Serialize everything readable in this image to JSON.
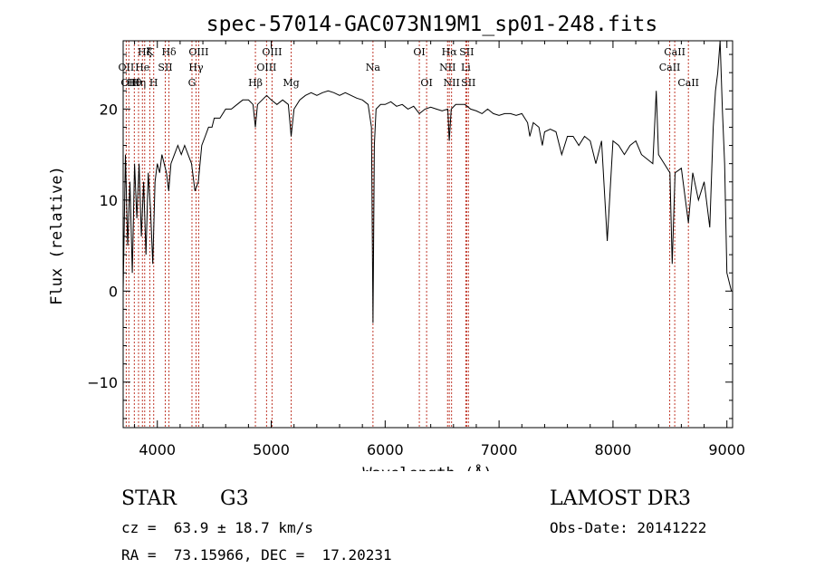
{
  "chart_data": {
    "type": "line",
    "title": "spec-57014-GAC073N19M1_sp01-248.fits",
    "xlabel": "Wavelength (Å)",
    "ylabel": "Flux (relative)",
    "xlim": [
      3700,
      9050
    ],
    "ylim": [
      -15,
      27.5
    ],
    "x_ticks": [
      4000,
      5000,
      6000,
      7000,
      8000,
      9000
    ],
    "y_ticks": [
      -10,
      0,
      10,
      20
    ],
    "x_tick_labels": [
      "4000",
      "5000",
      "6000",
      "7000",
      "8000",
      "9000"
    ],
    "y_tick_labels": [
      "−10",
      "0",
      "10",
      "20"
    ],
    "series": [
      {
        "name": "flux",
        "points": [
          [
            3700,
            0
          ],
          [
            3720,
            15
          ],
          [
            3740,
            5
          ],
          [
            3760,
            12
          ],
          [
            3780,
            2
          ],
          [
            3800,
            14
          ],
          [
            3820,
            8
          ],
          [
            3840,
            14
          ],
          [
            3860,
            6
          ],
          [
            3880,
            12
          ],
          [
            3900,
            4
          ],
          [
            3920,
            13
          ],
          [
            3940,
            9
          ],
          [
            3960,
            3
          ],
          [
            3980,
            12
          ],
          [
            4000,
            14
          ],
          [
            4020,
            13
          ],
          [
            4040,
            15
          ],
          [
            4060,
            14
          ],
          [
            4080,
            13
          ],
          [
            4100,
            11
          ],
          [
            4120,
            14
          ],
          [
            4150,
            15
          ],
          [
            4180,
            16
          ],
          [
            4210,
            15
          ],
          [
            4240,
            16
          ],
          [
            4270,
            15
          ],
          [
            4300,
            14
          ],
          [
            4330,
            11
          ],
          [
            4360,
            12
          ],
          [
            4390,
            16
          ],
          [
            4420,
            17
          ],
          [
            4450,
            18
          ],
          [
            4480,
            18
          ],
          [
            4500,
            19
          ],
          [
            4550,
            19
          ],
          [
            4600,
            20
          ],
          [
            4650,
            20
          ],
          [
            4700,
            20.5
          ],
          [
            4750,
            21
          ],
          [
            4800,
            21
          ],
          [
            4840,
            20.5
          ],
          [
            4861,
            18
          ],
          [
            4880,
            20.5
          ],
          [
            4920,
            21
          ],
          [
            4960,
            21.5
          ],
          [
            5000,
            21
          ],
          [
            5050,
            20.5
          ],
          [
            5100,
            21
          ],
          [
            5150,
            20.5
          ],
          [
            5175,
            17
          ],
          [
            5200,
            20
          ],
          [
            5250,
            21
          ],
          [
            5300,
            21.5
          ],
          [
            5350,
            21.8
          ],
          [
            5400,
            21.5
          ],
          [
            5450,
            21.8
          ],
          [
            5500,
            22
          ],
          [
            5550,
            21.8
          ],
          [
            5600,
            21.5
          ],
          [
            5650,
            21.8
          ],
          [
            5700,
            21.5
          ],
          [
            5750,
            21.2
          ],
          [
            5800,
            21
          ],
          [
            5850,
            20.5
          ],
          [
            5880,
            18
          ],
          [
            5893,
            -3.5
          ],
          [
            5905,
            16
          ],
          [
            5920,
            20
          ],
          [
            5960,
            20.5
          ],
          [
            6000,
            20.5
          ],
          [
            6050,
            20.8
          ],
          [
            6100,
            20.3
          ],
          [
            6150,
            20.5
          ],
          [
            6200,
            20
          ],
          [
            6250,
            20.3
          ],
          [
            6300,
            19.5
          ],
          [
            6350,
            20
          ],
          [
            6400,
            20.2
          ],
          [
            6450,
            20
          ],
          [
            6500,
            19.8
          ],
          [
            6550,
            20
          ],
          [
            6563,
            16.5
          ],
          [
            6580,
            20
          ],
          [
            6620,
            20.5
          ],
          [
            6650,
            20.5
          ],
          [
            6700,
            20.5
          ],
          [
            6750,
            20
          ],
          [
            6800,
            19.8
          ],
          [
            6850,
            19.5
          ],
          [
            6900,
            20
          ],
          [
            6950,
            19.5
          ],
          [
            7000,
            19.3
          ],
          [
            7050,
            19.5
          ],
          [
            7100,
            19.5
          ],
          [
            7150,
            19.3
          ],
          [
            7200,
            19.5
          ],
          [
            7250,
            18.5
          ],
          [
            7270,
            17
          ],
          [
            7300,
            18.5
          ],
          [
            7350,
            18
          ],
          [
            7380,
            16
          ],
          [
            7400,
            17.5
          ],
          [
            7450,
            17.8
          ],
          [
            7500,
            17.5
          ],
          [
            7550,
            15
          ],
          [
            7600,
            17
          ],
          [
            7650,
            17
          ],
          [
            7700,
            16
          ],
          [
            7750,
            17
          ],
          [
            7800,
            16.5
          ],
          [
            7850,
            14
          ],
          [
            7900,
            16.5
          ],
          [
            7950,
            5.5
          ],
          [
            8000,
            16.5
          ],
          [
            8050,
            16
          ],
          [
            8100,
            15
          ],
          [
            8150,
            16
          ],
          [
            8200,
            16.5
          ],
          [
            8250,
            15
          ],
          [
            8300,
            14.5
          ],
          [
            8350,
            14
          ],
          [
            8380,
            22
          ],
          [
            8400,
            15
          ],
          [
            8450,
            14
          ],
          [
            8500,
            13
          ],
          [
            8520,
            3
          ],
          [
            8545,
            13
          ],
          [
            8600,
            13.5
          ],
          [
            8662,
            7.5
          ],
          [
            8700,
            13
          ],
          [
            8750,
            10
          ],
          [
            8800,
            12
          ],
          [
            8850,
            7
          ],
          [
            8880,
            18
          ],
          [
            8900,
            22
          ],
          [
            8920,
            24
          ],
          [
            8940,
            27.5
          ],
          [
            8960,
            20
          ],
          [
            8980,
            14
          ],
          [
            9000,
            2
          ],
          [
            9040,
            0
          ]
        ]
      }
    ],
    "lines": [
      {
        "wave": 3727,
        "label": "OII",
        "row": 2
      },
      {
        "wave": 3750,
        "label": "OII",
        "row": 3
      },
      {
        "wave": 3798,
        "label": "Hθ",
        "row": 3
      },
      {
        "wave": 3835,
        "label": "Hη",
        "row": 4
      },
      {
        "wave": 3869,
        "label": "He",
        "row": 2
      },
      {
        "wave": 3889,
        "label": "Hζ",
        "row": 1
      },
      {
        "wave": 3934,
        "label": "K",
        "row": 1
      },
      {
        "wave": 3968,
        "label": "H",
        "row": 3
      },
      {
        "wave": 4070,
        "label": "SII",
        "row": 2
      },
      {
        "wave": 4102,
        "label": "Hδ",
        "row": 1
      },
      {
        "wave": 4304,
        "label": "G",
        "row": 3
      },
      {
        "wave": 4340,
        "label": "Hγ",
        "row": 2
      },
      {
        "wave": 4363,
        "label": "OIII",
        "row": 1
      },
      {
        "wave": 4861,
        "label": "Hβ",
        "row": 3
      },
      {
        "wave": 4959,
        "label": "OIII",
        "row": 2
      },
      {
        "wave": 5007,
        "label": "OIII",
        "row": 1
      },
      {
        "wave": 5175,
        "label": "Mg",
        "row": 3
      },
      {
        "wave": 5893,
        "label": "Na",
        "row": 2
      },
      {
        "wave": 6300,
        "label": "OI",
        "row": 1
      },
      {
        "wave": 6364,
        "label": "OI",
        "row": 3
      },
      {
        "wave": 6548,
        "label": "NII",
        "row": 2
      },
      {
        "wave": 6563,
        "label": "Hα",
        "row": 1
      },
      {
        "wave": 6583,
        "label": "NII",
        "row": 3
      },
      {
        "wave": 6708,
        "label": "Li",
        "row": 2
      },
      {
        "wave": 6716,
        "label": "SII",
        "row": 1
      },
      {
        "wave": 6731,
        "label": "SII",
        "row": 3
      },
      {
        "wave": 8498,
        "label": "CaII",
        "row": 2
      },
      {
        "wave": 8542,
        "label": "CaII",
        "row": 1
      },
      {
        "wave": 8662,
        "label": "CaII",
        "row": 3
      }
    ],
    "colors": {
      "spectrum": "#000000",
      "line_marker": "#c0392b",
      "axis": "#000000"
    }
  },
  "info": {
    "object_class": "STAR",
    "subclass": "G3",
    "survey": "LAMOST DR3",
    "redshift_line": "cz =  63.9 ± 18.7 km/s",
    "obs_date_line": "Obs-Date: 20141222",
    "coords_line": "RA =  73.15966, DEC =  17.20231"
  }
}
